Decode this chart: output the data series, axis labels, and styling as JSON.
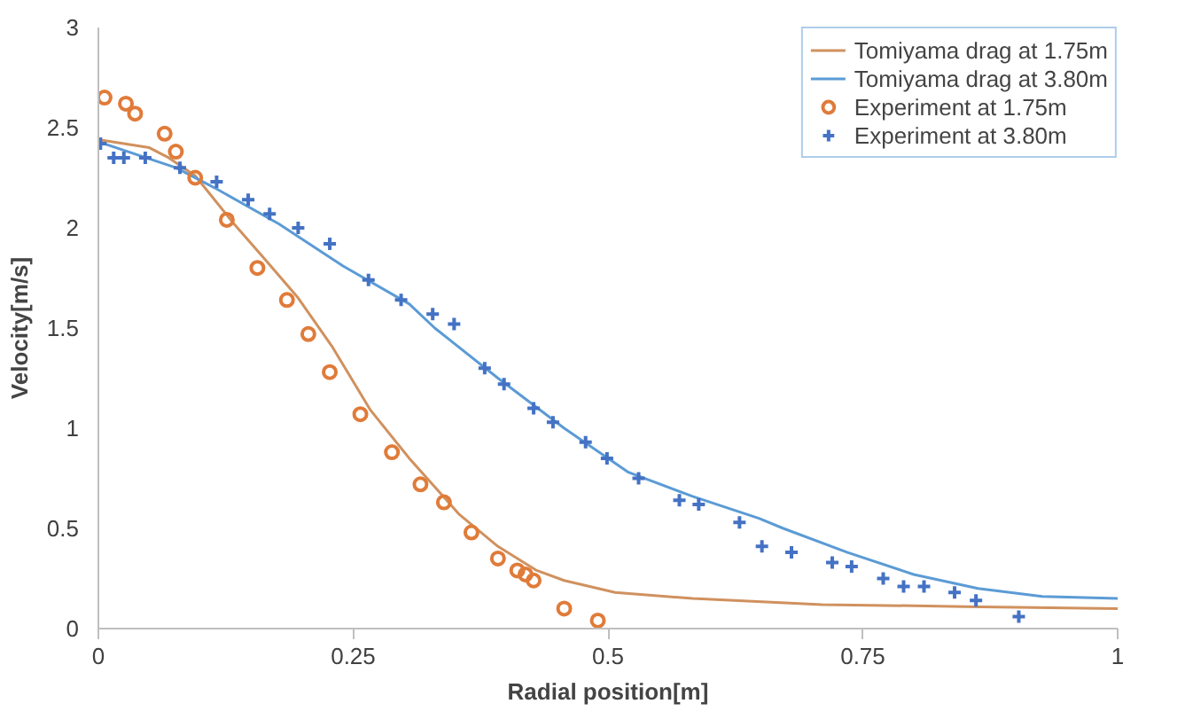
{
  "chart_data": {
    "type": "line",
    "xlabel": "Radial position[m]",
    "ylabel": "Velocity[m/s]",
    "xlim": [
      0,
      1
    ],
    "ylim": [
      0,
      3
    ],
    "xticks": [
      0,
      0.25,
      0.5,
      0.75,
      1
    ],
    "yticks": [
      0,
      0.5,
      1,
      1.5,
      2,
      2.5,
      3
    ],
    "grid": false,
    "legend": "top right",
    "series": [
      {
        "name": "Tomiyama drag at 1.75m",
        "color": "#d0915e",
        "marker": "none",
        "line_style": "solid",
        "x": [
          0,
          0.05,
          0.069,
          0.095,
          0.133,
          0.164,
          0.196,
          0.229,
          0.267,
          0.305,
          0.354,
          0.392,
          0.43,
          0.457,
          0.507,
          0.583,
          0.71,
          0.85,
          1.0
        ],
        "values": [
          2.44,
          2.4,
          2.35,
          2.26,
          2.02,
          1.84,
          1.65,
          1.41,
          1.09,
          0.85,
          0.57,
          0.41,
          0.29,
          0.24,
          0.18,
          0.15,
          0.12,
          0.11,
          0.1
        ]
      },
      {
        "name": "Tomiyama drag at 3.80m",
        "color": "#5b9bd5",
        "marker": "none",
        "line_style": "solid",
        "x": [
          0,
          0.076,
          0.114,
          0.177,
          0.24,
          0.305,
          0.33,
          0.392,
          0.457,
          0.52,
          0.583,
          0.648,
          0.672,
          0.735,
          0.8,
          0.863,
          0.926,
          1.0
        ],
        "values": [
          2.43,
          2.3,
          2.2,
          2.02,
          1.81,
          1.62,
          1.5,
          1.25,
          1.0,
          0.78,
          0.66,
          0.55,
          0.5,
          0.38,
          0.27,
          0.2,
          0.16,
          0.15
        ]
      },
      {
        "name": "Experiment at 1.75m",
        "type": "scatter",
        "color": "#e07b39",
        "marker": "circle",
        "x": [
          0.006,
          0.027,
          0.036,
          0.065,
          0.076,
          0.095,
          0.126,
          0.156,
          0.185,
          0.206,
          0.227,
          0.257,
          0.288,
          0.316,
          0.339,
          0.366,
          0.392,
          0.411,
          0.419,
          0.427,
          0.457,
          0.49
        ],
        "values": [
          2.65,
          2.62,
          2.57,
          2.47,
          2.38,
          2.25,
          2.04,
          1.8,
          1.64,
          1.47,
          1.28,
          1.07,
          0.88,
          0.72,
          0.63,
          0.48,
          0.35,
          0.29,
          0.27,
          0.24,
          0.1,
          0.04
        ]
      },
      {
        "name": "Experiment at 3.80m",
        "type": "scatter",
        "color": "#4472c4",
        "marker": "cross",
        "x": [
          0.002,
          0.015,
          0.025,
          0.046,
          0.08,
          0.116,
          0.147,
          0.168,
          0.196,
          0.227,
          0.265,
          0.297,
          0.328,
          0.349,
          0.379,
          0.398,
          0.427,
          0.446,
          0.478,
          0.499,
          0.53,
          0.57,
          0.589,
          0.629,
          0.651,
          0.68,
          0.72,
          0.739,
          0.77,
          0.79,
          0.81,
          0.84,
          0.861,
          0.903
        ],
        "values": [
          2.42,
          2.35,
          2.35,
          2.35,
          2.3,
          2.23,
          2.14,
          2.07,
          2.0,
          1.92,
          1.74,
          1.64,
          1.57,
          1.52,
          1.3,
          1.22,
          1.1,
          1.03,
          0.93,
          0.85,
          0.75,
          0.64,
          0.62,
          0.53,
          0.41,
          0.38,
          0.33,
          0.31,
          0.25,
          0.21,
          0.21,
          0.18,
          0.14,
          0.06
        ]
      }
    ]
  }
}
